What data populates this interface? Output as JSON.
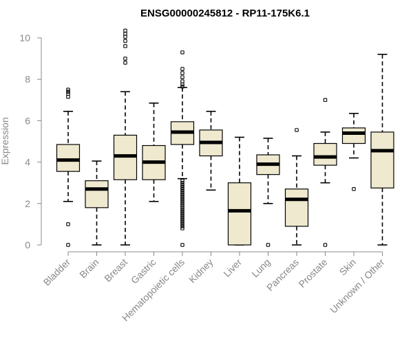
{
  "chart_data": {
    "type": "boxplot",
    "title": "ENSG00000245812 - RP11-175K6.1",
    "xlabel": "",
    "ylabel": "Expression",
    "ylim": [
      0,
      10
    ],
    "yticks": [
      0,
      2,
      4,
      6,
      8,
      10
    ],
    "grid": false,
    "categories": [
      "Bladder",
      "Brain",
      "Breast",
      "Gastric",
      "Hematopoietic cells",
      "Kidney",
      "Liver",
      "Lung",
      "Pancreas",
      "Prostate",
      "Skin",
      "Unknown / Other"
    ],
    "series": [
      {
        "name": "Bladder",
        "lower_whisker": 2.1,
        "q1": 3.55,
        "median": 4.1,
        "q3": 4.85,
        "upper_whisker": 6.45,
        "outliers": [
          7.5,
          7.4,
          7.3,
          7.15,
          1.0,
          0.0
        ]
      },
      {
        "name": "Brain",
        "lower_whisker": 0.0,
        "q1": 1.8,
        "median": 2.7,
        "q3": 3.1,
        "upper_whisker": 4.05,
        "outliers": []
      },
      {
        "name": "Breast",
        "lower_whisker": 0.0,
        "q1": 3.15,
        "median": 4.3,
        "q3": 5.3,
        "upper_whisker": 7.4,
        "outliers": [
          10.35,
          10.2,
          10.05,
          9.85,
          9.6,
          9.0,
          8.8
        ]
      },
      {
        "name": "Gastric",
        "lower_whisker": 2.1,
        "q1": 3.15,
        "median": 4.0,
        "q3": 4.8,
        "upper_whisker": 6.85,
        "outliers": []
      },
      {
        "name": "Hematopoietic cells",
        "lower_whisker": 3.2,
        "q1": 4.85,
        "median": 5.45,
        "q3": 5.95,
        "upper_whisker": 7.6,
        "outliers": [
          9.3,
          8.5,
          8.3,
          8.1,
          7.9,
          7.75,
          7.65,
          3.1,
          3.0,
          2.9,
          2.8,
          2.7,
          2.6,
          2.5,
          2.4,
          2.3,
          2.2,
          2.1,
          2.0,
          1.9,
          1.8,
          1.7,
          1.6,
          1.5,
          1.4,
          1.3,
          1.2,
          1.1,
          1.0,
          0.9,
          0.8,
          0.0
        ]
      },
      {
        "name": "Kidney",
        "lower_whisker": 2.65,
        "q1": 4.3,
        "median": 4.95,
        "q3": 5.55,
        "upper_whisker": 6.45,
        "outliers": []
      },
      {
        "name": "Liver",
        "lower_whisker": 0.0,
        "q1": 0.0,
        "median": 1.65,
        "q3": 3.0,
        "upper_whisker": 5.2,
        "outliers": []
      },
      {
        "name": "Lung",
        "lower_whisker": 2.0,
        "q1": 3.4,
        "median": 3.9,
        "q3": 4.35,
        "upper_whisker": 5.15,
        "outliers": [
          0.0
        ]
      },
      {
        "name": "Pancreas",
        "lower_whisker": 0.0,
        "q1": 0.9,
        "median": 2.2,
        "q3": 2.7,
        "upper_whisker": 4.3,
        "outliers": [
          5.55
        ]
      },
      {
        "name": "Prostate",
        "lower_whisker": 3.0,
        "q1": 3.85,
        "median": 4.25,
        "q3": 4.9,
        "upper_whisker": 5.45,
        "outliers": [
          7.0,
          0.0
        ]
      },
      {
        "name": "Skin",
        "lower_whisker": 4.2,
        "q1": 4.9,
        "median": 5.4,
        "q3": 5.65,
        "upper_whisker": 6.35,
        "outliers": [
          2.7
        ]
      },
      {
        "name": "Unknown / Other",
        "lower_whisker": 0.0,
        "q1": 2.75,
        "median": 4.55,
        "q3": 5.45,
        "upper_whisker": 9.2,
        "outliers": []
      }
    ],
    "colors": {
      "box_fill": "#efe9d0",
      "box_stroke": "#000000",
      "axis": "#888888",
      "text": "#888888",
      "title": "#000000"
    }
  }
}
